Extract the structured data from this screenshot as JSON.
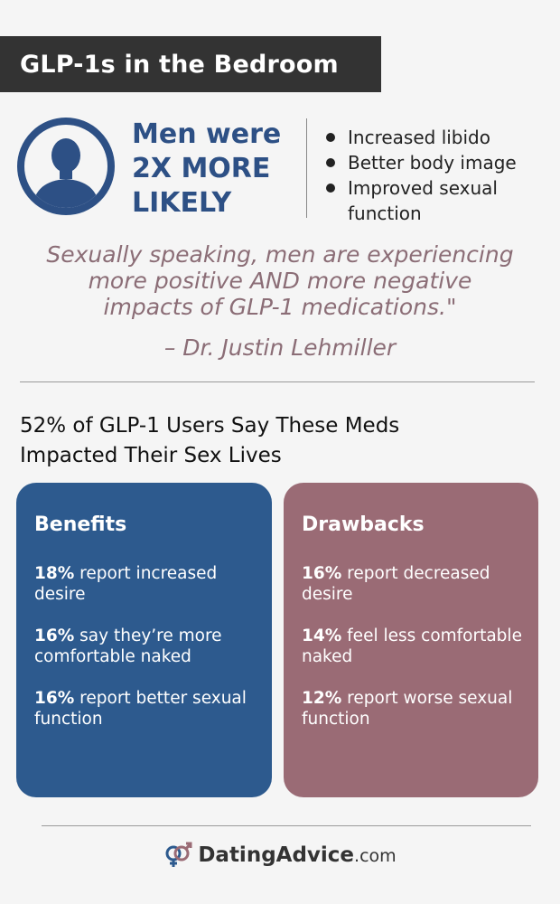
{
  "title": "GLP-1s in the Bedroom",
  "stat": {
    "lines": [
      "Men were",
      "2X MORE",
      "LIKELY"
    ]
  },
  "bullets": [
    "Increased libido",
    "Better body image",
    "Improved sexual function"
  ],
  "quote": {
    "lines": [
      "Sexually speaking, men are experiencing",
      "more positive AND more negative",
      "impacts of GLP-1 medications.\""
    ],
    "attribution": "– Dr. Justin Lehmiller"
  },
  "headline": {
    "lines": [
      "52% of GLP-1 Users Say These Meds",
      "Impacted Their Sex Lives"
    ]
  },
  "benefits": {
    "title": "Benefits",
    "items": [
      {
        "pct": "18%",
        "text": "report increased desire"
      },
      {
        "pct": "16%",
        "text": "say they’re more comfortable naked"
      },
      {
        "pct": "16%",
        "text": "report better sexual function"
      }
    ]
  },
  "drawbacks": {
    "title": "Drawbacks",
    "items": [
      {
        "pct": "16%",
        "text": "report decreased desire"
      },
      {
        "pct": "14%",
        "text": "feel less comfortable naked"
      },
      {
        "pct": "12%",
        "text": "report worse sexual function"
      }
    ]
  },
  "logo": {
    "name": "DatingAdvice",
    "suffix": ".com",
    "icon": "gender-symbols-icon"
  },
  "colors": {
    "dark": "#333333",
    "blue": "#2d5a8e",
    "mauve": "#9a6b75",
    "quote": "#8b6d76"
  }
}
